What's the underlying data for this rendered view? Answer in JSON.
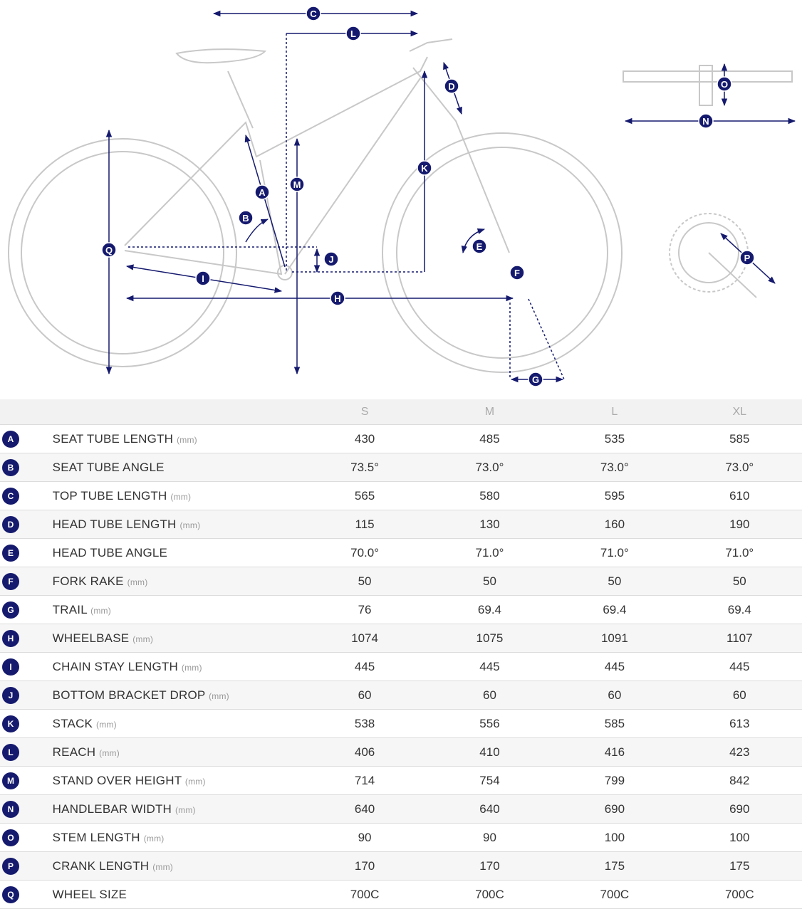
{
  "sizes": [
    "S",
    "M",
    "L",
    "XL"
  ],
  "rows": [
    {
      "letter": "A",
      "name": "SEAT TUBE LENGTH",
      "unit": "(mm)",
      "values": [
        "430",
        "485",
        "535",
        "585"
      ]
    },
    {
      "letter": "B",
      "name": "SEAT TUBE ANGLE",
      "values": [
        "73.5°",
        "73.0°",
        "73.0°",
        "73.0°"
      ]
    },
    {
      "letter": "C",
      "name": "TOP TUBE LENGTH",
      "unit": "(mm)",
      "values": [
        "565",
        "580",
        "595",
        "610"
      ]
    },
    {
      "letter": "D",
      "name": "HEAD TUBE LENGTH",
      "unit": "(mm)",
      "values": [
        "115",
        "130",
        "160",
        "190"
      ]
    },
    {
      "letter": "E",
      "name": "HEAD TUBE ANGLE",
      "values": [
        "70.0°",
        "71.0°",
        "71.0°",
        "71.0°"
      ]
    },
    {
      "letter": "F",
      "name": "FORK RAKE",
      "unit": "(mm)",
      "values": [
        "50",
        "50",
        "50",
        "50"
      ]
    },
    {
      "letter": "G",
      "name": "TRAIL",
      "unit": "(mm)",
      "values": [
        "76",
        "69.4",
        "69.4",
        "69.4"
      ]
    },
    {
      "letter": "H",
      "name": "WHEELBASE",
      "unit": "(mm)",
      "values": [
        "1074",
        "1075",
        "1091",
        "1107"
      ]
    },
    {
      "letter": "I",
      "name": "CHAIN STAY LENGTH",
      "unit": "(mm)",
      "values": [
        "445",
        "445",
        "445",
        "445"
      ]
    },
    {
      "letter": "J",
      "name": "BOTTOM BRACKET DROP",
      "unit": "(mm)",
      "values": [
        "60",
        "60",
        "60",
        "60"
      ]
    },
    {
      "letter": "K",
      "name": "STACK",
      "unit": "(mm)",
      "values": [
        "538",
        "556",
        "585",
        "613"
      ]
    },
    {
      "letter": "L",
      "name": "REACH",
      "unit": "(mm)",
      "values": [
        "406",
        "410",
        "416",
        "423"
      ]
    },
    {
      "letter": "M",
      "name": "STAND OVER HEIGHT",
      "unit": "(mm)",
      "values": [
        "714",
        "754",
        "799",
        "842"
      ]
    },
    {
      "letter": "N",
      "name": "HANDLEBAR WIDTH",
      "unit": "(mm)",
      "values": [
        "640",
        "640",
        "690",
        "690"
      ]
    },
    {
      "letter": "O",
      "name": "STEM LENGTH",
      "unit": "(mm)",
      "values": [
        "90",
        "90",
        "100",
        "100"
      ]
    },
    {
      "letter": "P",
      "name": "CRANK LENGTH",
      "unit": "(mm)",
      "values": [
        "170",
        "170",
        "175",
        "175"
      ]
    },
    {
      "letter": "Q",
      "name": "WHEEL SIZE",
      "values": [
        "700C",
        "700C",
        "700C",
        "700C"
      ]
    }
  ]
}
